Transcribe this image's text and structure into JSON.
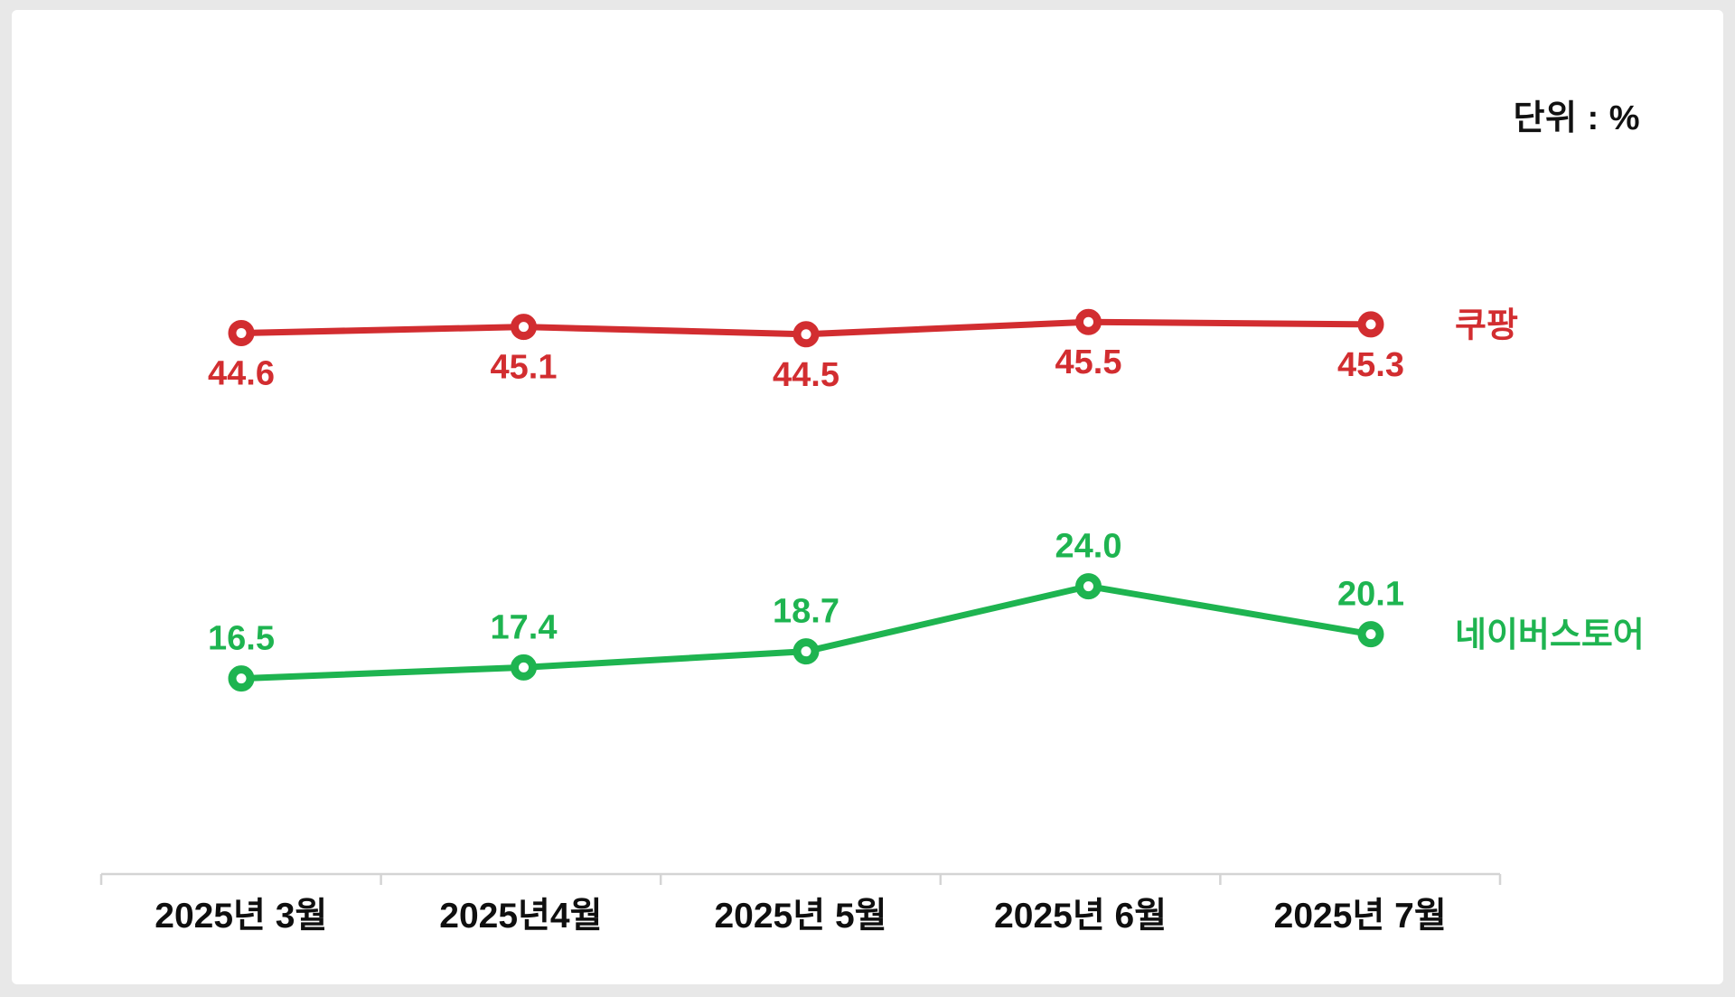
{
  "unit_label": "단위 : %",
  "chart_data": {
    "type": "line",
    "title": "",
    "xlabel": "",
    "ylabel": "",
    "unit": "%",
    "grid": false,
    "y_axis_visible": false,
    "ylim": [
      0,
      60
    ],
    "legend_position": "right-of-last-point",
    "categories": [
      "2025년 3월",
      "2025년4월",
      "2025년 5월",
      "2025년 6월",
      "2025년 7월"
    ],
    "series": [
      {
        "name": "쿠팡",
        "values": [
          44.6,
          45.1,
          44.5,
          45.5,
          45.3
        ],
        "color": "#d22d30",
        "value_label_position": "below"
      },
      {
        "name": "네이버스토어",
        "values": [
          16.5,
          17.4,
          18.7,
          24.0,
          20.1
        ],
        "color": "#1eb450",
        "value_label_position": "above"
      }
    ]
  },
  "colors": {
    "background": "#e8e8e8",
    "card": "#ffffff",
    "axis": "#d4d4d4",
    "axis_text": "#0f0f0f",
    "unit_text": "#111111"
  }
}
